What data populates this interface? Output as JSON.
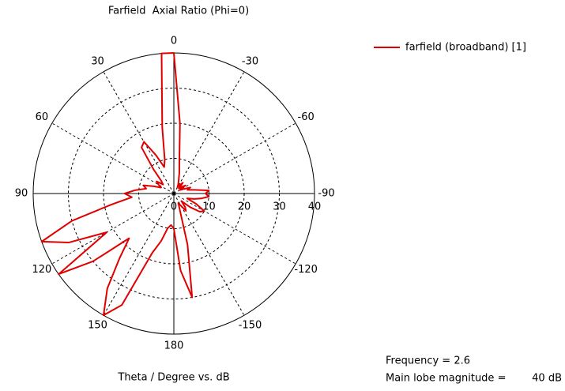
{
  "chart_data": {
    "type": "polar",
    "title": "Farfield  Axial Ratio (Phi=0)",
    "axis_label": "Theta / Degree vs. dB",
    "rlim": [
      0,
      40
    ],
    "rticks": [
      0,
      10,
      20,
      30,
      40
    ],
    "thetaticks": [
      0,
      30,
      60,
      90,
      120,
      150,
      180,
      -150,
      -120,
      -90,
      -60,
      -30
    ],
    "legend_position": "upper right",
    "series": [
      {
        "name": "farfield (broadband) [1]",
        "color": "#e00000",
        "x": [
          -180,
          -175,
          -170,
          -165,
          -160,
          -155,
          -150,
          -145,
          -140,
          -135,
          -130,
          -125,
          -120,
          -115,
          -110,
          -105,
          -100,
          -95,
          -90,
          -85,
          -80,
          -75,
          -70,
          -65,
          -60,
          -55,
          -50,
          -45,
          -40,
          -35,
          -30,
          -25,
          -20,
          -15,
          -10,
          -5,
          0,
          5,
          10,
          15,
          20,
          25,
          30,
          35,
          40,
          45,
          50,
          55,
          60,
          65,
          70,
          75,
          80,
          85,
          90,
          95,
          100,
          105,
          110,
          115,
          120,
          125,
          130,
          135,
          140,
          145,
          150,
          155,
          160,
          165,
          170,
          175,
          180
        ],
        "values": [
          10,
          22,
          30,
          15,
          5,
          3,
          4,
          6,
          5,
          3,
          6,
          9,
          10,
          7,
          4,
          6,
          8,
          10,
          9,
          10,
          6,
          4,
          5,
          3,
          2,
          4,
          3,
          2,
          4,
          3,
          2,
          3,
          4,
          6,
          9,
          20,
          40,
          40,
          19,
          10,
          8,
          12,
          17,
          16,
          9,
          5,
          4,
          6,
          5,
          4,
          6,
          9,
          8,
          11,
          14,
          12,
          18,
          30,
          40,
          33,
          22,
          40,
          30,
          18,
          24,
          33,
          40,
          35,
          18,
          14,
          10,
          9,
          10
        ]
      }
    ],
    "annotations": [
      "Frequency = 2.6",
      "Main lobe magnitude =",
      "40 dB"
    ]
  }
}
